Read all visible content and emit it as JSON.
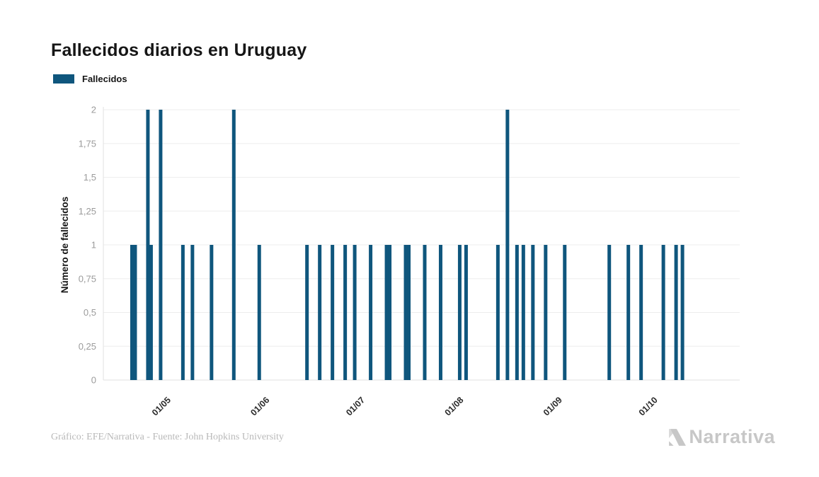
{
  "title": "Fallecidos diarios en Uruguay",
  "legend": {
    "label": "Fallecidos",
    "swatch_color": "#0F567D"
  },
  "footer": {
    "credit": "Gráfico: EFE/Narrativa - Fuente: John Hopkins University"
  },
  "logo": {
    "text": "Narrativa",
    "color": "#c7c7c7"
  },
  "chart_data": {
    "type": "bar",
    "title": "Fallecidos diarios en Uruguay",
    "xlabel": "",
    "ylabel": "Número de fallecidos",
    "series_name": "Fallecidos",
    "bar_color": "#0F567D",
    "grid": "horizontal",
    "legend_position": "top-left",
    "ylim": [
      0,
      2
    ],
    "y_tick_values": [
      0,
      0.25,
      0.5,
      0.75,
      1,
      1.25,
      1.5,
      1.75,
      2
    ],
    "y_tick_labels": [
      "0",
      "0,25",
      "0,5",
      "0,75",
      "1",
      "1,25",
      "1,5",
      "1,75",
      "2"
    ],
    "x_tick_labels": [
      "01/05",
      "01/06",
      "01/07",
      "01/08",
      "01/09",
      "01/10"
    ],
    "date_format": "DD/MM",
    "x_domain": [
      "11/04",
      "28/10"
    ],
    "points": [
      {
        "date": "20/04",
        "value": 1
      },
      {
        "date": "21/04",
        "value": 1
      },
      {
        "date": "25/04",
        "value": 2
      },
      {
        "date": "26/04",
        "value": 1
      },
      {
        "date": "29/04",
        "value": 2
      },
      {
        "date": "06/05",
        "value": 1
      },
      {
        "date": "09/05",
        "value": 1
      },
      {
        "date": "15/05",
        "value": 1
      },
      {
        "date": "22/05",
        "value": 2
      },
      {
        "date": "30/05",
        "value": 1
      },
      {
        "date": "14/06",
        "value": 1
      },
      {
        "date": "18/06",
        "value": 1
      },
      {
        "date": "22/06",
        "value": 1
      },
      {
        "date": "26/06",
        "value": 1
      },
      {
        "date": "29/06",
        "value": 1
      },
      {
        "date": "04/07",
        "value": 1
      },
      {
        "date": "09/07",
        "value": 1
      },
      {
        "date": "10/07",
        "value": 1
      },
      {
        "date": "15/07",
        "value": 1
      },
      {
        "date": "16/07",
        "value": 1
      },
      {
        "date": "21/07",
        "value": 1
      },
      {
        "date": "26/07",
        "value": 1
      },
      {
        "date": "01/08",
        "value": 1
      },
      {
        "date": "03/08",
        "value": 1
      },
      {
        "date": "13/08",
        "value": 1
      },
      {
        "date": "16/08",
        "value": 2
      },
      {
        "date": "19/08",
        "value": 1
      },
      {
        "date": "21/08",
        "value": 1
      },
      {
        "date": "24/08",
        "value": 1
      },
      {
        "date": "28/08",
        "value": 1
      },
      {
        "date": "03/09",
        "value": 1
      },
      {
        "date": "17/09",
        "value": 1
      },
      {
        "date": "23/09",
        "value": 1
      },
      {
        "date": "27/09",
        "value": 1
      },
      {
        "date": "04/10",
        "value": 1
      },
      {
        "date": "08/10",
        "value": 1
      },
      {
        "date": "10/10",
        "value": 1
      }
    ]
  }
}
